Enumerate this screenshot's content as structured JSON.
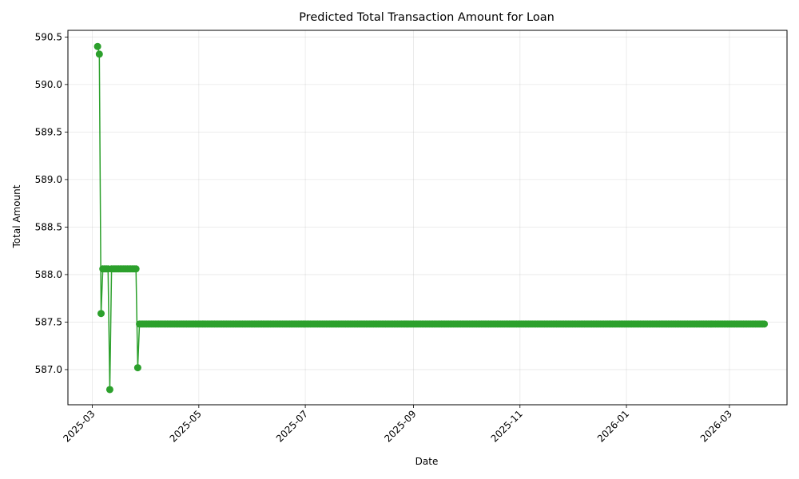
{
  "chart_data": {
    "type": "line",
    "title": "Predicted Total Transaction Amount for Loan",
    "xlabel": "Date",
    "ylabel": "Total Amount",
    "xlim": [
      "2025-02-15",
      "2026-04-03"
    ],
    "ylim": [
      586.63,
      590.57
    ],
    "grid": true,
    "markers": true,
    "color": "#2ca02c",
    "x_ticks": [
      "2025-03",
      "2025-05",
      "2025-07",
      "2025-09",
      "2025-11",
      "2026-01",
      "2026-03"
    ],
    "y_ticks": [
      "587.0",
      "587.5",
      "588.0",
      "588.5",
      "589.0",
      "589.5",
      "590.0",
      "590.5"
    ],
    "series": [
      {
        "name": "",
        "points": [
          [
            "2025-03-04",
            590.4
          ],
          [
            "2025-03-05",
            590.32
          ],
          [
            "2025-03-06",
            587.59
          ],
          [
            "2025-03-07",
            588.06
          ],
          [
            "2025-03-08",
            588.06
          ],
          [
            "2025-03-09",
            588.06
          ],
          [
            "2025-03-10",
            588.06
          ],
          [
            "2025-03-11",
            586.79
          ],
          [
            "2025-03-12",
            588.06
          ],
          [
            "2025-03-13",
            588.06
          ],
          [
            "2025-03-14",
            588.06
          ],
          [
            "2025-03-15",
            588.06
          ],
          [
            "2025-03-16",
            588.06
          ],
          [
            "2025-03-17",
            588.06
          ],
          [
            "2025-03-18",
            588.06
          ],
          [
            "2025-03-19",
            588.06
          ],
          [
            "2025-03-20",
            588.06
          ],
          [
            "2025-03-21",
            588.06
          ],
          [
            "2025-03-22",
            588.06
          ],
          [
            "2025-03-23",
            588.06
          ],
          [
            "2025-03-24",
            588.06
          ],
          [
            "2025-03-25",
            588.06
          ],
          [
            "2025-03-26",
            588.06
          ],
          [
            "2025-03-27",
            587.02
          ]
        ],
        "flat_segment": {
          "start": "2025-03-28",
          "end": "2026-03-21",
          "value": 587.48
        }
      }
    ]
  }
}
